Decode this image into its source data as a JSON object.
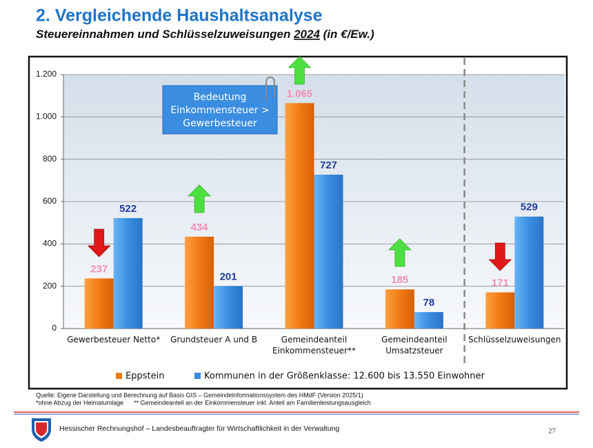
{
  "chart_data": {
    "type": "bar",
    "title": "2. Vergleichende Haushaltsanalyse",
    "subtitle_parts": [
      "Steuereinnahmen und Schlüsselzuweisungen ",
      "2024",
      " (in €/Ew.)"
    ],
    "categories": [
      "Gewerbesteuer Netto*",
      "Grundsteuer A und B",
      "Gemeindeanteil Einkommensteuer**",
      "Gemeindeanteil Umsatzsteuer",
      "Schlüsselzuweisungen"
    ],
    "series": [
      {
        "name": "Eppstein",
        "color": "#f07a14",
        "label_color": "#f28cb4",
        "values": [
          237,
          434,
          1065,
          185,
          171
        ],
        "value_labels": [
          "237",
          "434",
          "1.065",
          "185",
          "171"
        ]
      },
      {
        "name": "Kommunen in der Größenklasse: 12.600 bis 13.550 Einwohner",
        "color": "#3a8de0",
        "label_color": "#1f3c9c",
        "values": [
          522,
          201,
          727,
          78,
          529
        ]
      }
    ],
    "ylim": [
      0,
      1200
    ],
    "yticks": [
      0,
      200,
      400,
      600,
      800,
      {
        "value": 1000,
        "label": "1.000"
      },
      {
        "value": 1200,
        "label": "1.200"
      }
    ],
    "grid": true,
    "annotation": [
      "Bedeutung",
      "Einkommensteuer >",
      "Gewerbesteuer"
    ],
    "notes": [
      "Quelle: Eigene Darstellung und Berechnung auf Basis GIS – Gemeindeinformationssystem des HMdF (Version 2025/1)",
      "*ohne Abzug der Heimatumlage      ** Gemeindeanteil an der Einkommensteuer inkl. Anteil am Familienleistungsausgleich"
    ],
    "footer": "Hessischer Rechnungshof – Landesbeauftragter für Wirtschaftlichkeit in der Verwaltung",
    "page_number": "27"
  }
}
